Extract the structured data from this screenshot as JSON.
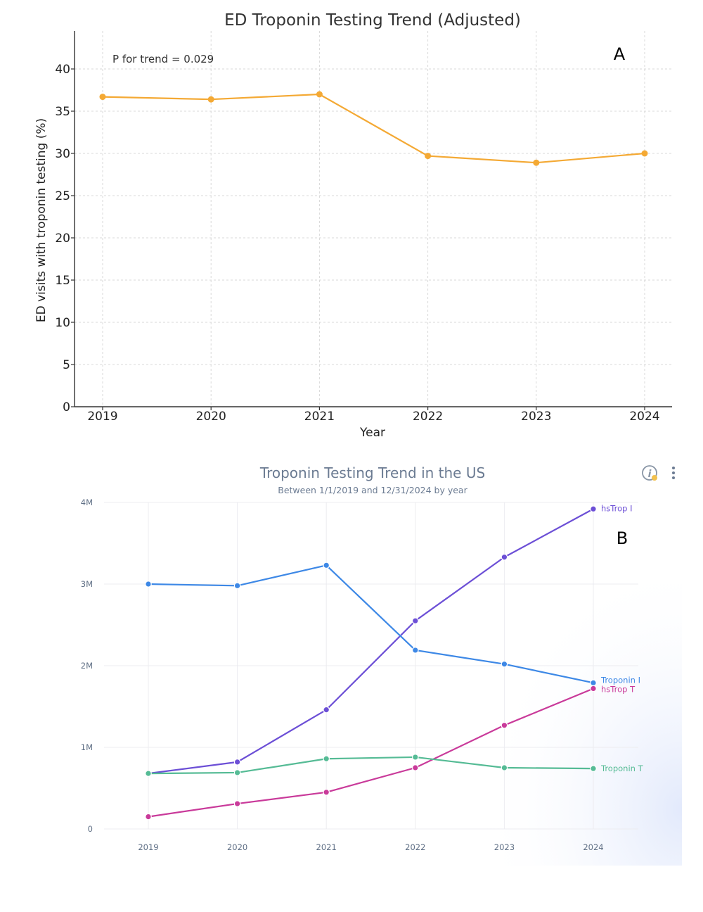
{
  "chart_data": [
    {
      "panel_letter": "A",
      "type": "line",
      "title": "ED Troponin Testing Trend (Adjusted)",
      "xlabel": "Year",
      "ylabel": "ED visits with troponin testing (%)",
      "annotation": "P for trend = 0.029",
      "categories": [
        "2019",
        "2020",
        "2021",
        "2022",
        "2023",
        "2024"
      ],
      "yticks": [
        "0",
        "5",
        "10",
        "15",
        "20",
        "25",
        "30",
        "35",
        "40"
      ],
      "ylim": [
        0,
        44.5
      ],
      "grid": true,
      "series": [
        {
          "name": "Adjusted",
          "color": "#f4a934",
          "values": [
            36.7,
            36.4,
            37.0,
            29.7,
            28.9,
            30.0
          ]
        }
      ]
    },
    {
      "panel_letter": "B",
      "type": "line",
      "title": "Troponin Testing Trend in the US",
      "subtitle": "Between 1/1/2019 and 12/31/2024 by year",
      "categories": [
        "2019",
        "2020",
        "2021",
        "2022",
        "2023",
        "2024"
      ],
      "yticks": [
        "0",
        "1M",
        "2M",
        "3M",
        "4M"
      ],
      "ylim": [
        0,
        4000000
      ],
      "grid": true,
      "series": [
        {
          "name": "hsTrop I",
          "color": "#6c4fd6",
          "values": [
            680000,
            820000,
            1460000,
            2550000,
            3330000,
            3920000
          ]
        },
        {
          "name": "Troponin I",
          "color": "#3d88e6",
          "values": [
            3000000,
            2980000,
            3230000,
            2190000,
            2020000,
            1790000
          ]
        },
        {
          "name": "hsTrop T",
          "color": "#c93a9a",
          "values": [
            150000,
            310000,
            450000,
            750000,
            1270000,
            1720000
          ]
        },
        {
          "name": "Troponin T",
          "color": "#55bb95",
          "values": [
            680000,
            690000,
            860000,
            880000,
            750000,
            740000
          ]
        }
      ]
    }
  ],
  "toolbar": {
    "info_icon": "info-icon",
    "menu_icon": "more-vertical-icon"
  }
}
